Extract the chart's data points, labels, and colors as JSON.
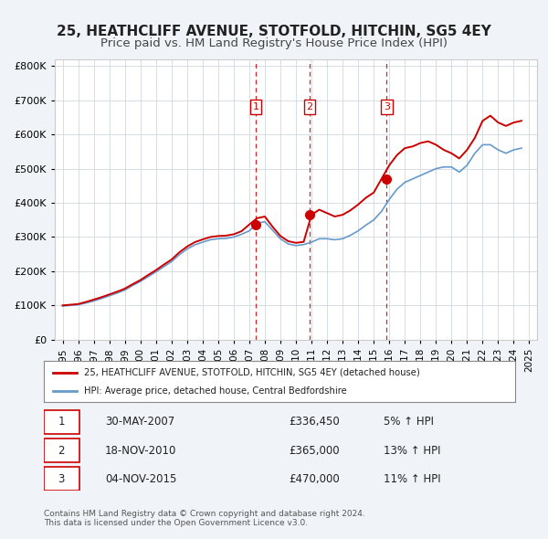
{
  "title": "25, HEATHCLIFF AVENUE, STOTFOLD, HITCHIN, SG5 4EY",
  "subtitle": "Price paid vs. HM Land Registry's House Price Index (HPI)",
  "title_fontsize": 11,
  "subtitle_fontsize": 9.5,
  "background_color": "#f0f4f8",
  "plot_bg_color": "#ffffff",
  "red_line_color": "#cc0000",
  "blue_line_color": "#6699cc",
  "sale_marker_color": "#cc0000",
  "dashed_line_color": "#cc0000",
  "xlabel": "",
  "ylabel": "",
  "ylim": [
    0,
    820000
  ],
  "xlim_start": 1994.5,
  "xlim_end": 2025.5,
  "yticks": [
    0,
    100000,
    200000,
    300000,
    400000,
    500000,
    600000,
    700000,
    800000
  ],
  "ytick_labels": [
    "£0",
    "£100K",
    "£200K",
    "£300K",
    "£400K",
    "£500K",
    "£600K",
    "£700K",
    "£800K"
  ],
  "xticks": [
    1995,
    1996,
    1997,
    1998,
    1999,
    2000,
    2001,
    2002,
    2003,
    2004,
    2005,
    2006,
    2007,
    2008,
    2009,
    2010,
    2011,
    2012,
    2013,
    2014,
    2015,
    2016,
    2017,
    2018,
    2019,
    2020,
    2021,
    2022,
    2023,
    2024,
    2025
  ],
  "sale_dates": [
    2007.41,
    2010.88,
    2015.84
  ],
  "sale_prices": [
    336450,
    365000,
    470000
  ],
  "sale_labels": [
    "1",
    "2",
    "3"
  ],
  "legend_red_label": "25, HEATHCLIFF AVENUE, STOTFOLD, HITCHIN, SG5 4EY (detached house)",
  "legend_blue_label": "HPI: Average price, detached house, Central Bedfordshire",
  "table_rows": [
    {
      "num": "1",
      "date": "30-MAY-2007",
      "price": "£336,450",
      "change": "5% ↑ HPI"
    },
    {
      "num": "2",
      "date": "18-NOV-2010",
      "price": "£365,000",
      "change": "13% ↑ HPI"
    },
    {
      "num": "3",
      "date": "04-NOV-2015",
      "price": "£470,000",
      "change": "11% ↑ HPI"
    }
  ],
  "footer": "Contains HM Land Registry data © Crown copyright and database right 2024.\nThis data is licensed under the Open Government Licence v3.0.",
  "hpi_x": [
    1995,
    1995.5,
    1996,
    1996.5,
    1997,
    1997.5,
    1998,
    1998.5,
    1999,
    1999.5,
    2000,
    2000.5,
    2001,
    2001.5,
    2002,
    2002.5,
    2003,
    2003.5,
    2004,
    2004.5,
    2005,
    2005.5,
    2006,
    2006.5,
    2007,
    2007.5,
    2008,
    2008.5,
    2009,
    2009.5,
    2010,
    2010.5,
    2011,
    2011.5,
    2012,
    2012.5,
    2013,
    2013.5,
    2014,
    2014.5,
    2015,
    2015.5,
    2016,
    2016.5,
    2017,
    2017.5,
    2018,
    2018.5,
    2019,
    2019.5,
    2020,
    2020.5,
    2021,
    2021.5,
    2022,
    2022.5,
    2023,
    2023.5,
    2024,
    2024.5
  ],
  "hpi_y": [
    98000,
    100000,
    102000,
    107000,
    113000,
    120000,
    128000,
    136000,
    145000,
    158000,
    170000,
    184000,
    198000,
    213000,
    228000,
    248000,
    265000,
    277000,
    285000,
    292000,
    295000,
    296000,
    300000,
    308000,
    318000,
    340000,
    345000,
    320000,
    295000,
    280000,
    275000,
    278000,
    285000,
    295000,
    295000,
    292000,
    295000,
    305000,
    318000,
    335000,
    350000,
    375000,
    410000,
    440000,
    460000,
    470000,
    480000,
    490000,
    500000,
    505000,
    505000,
    490000,
    510000,
    545000,
    570000,
    570000,
    555000,
    545000,
    555000,
    560000
  ],
  "red_x": [
    1995,
    1995.5,
    1996,
    1996.5,
    1997,
    1997.5,
    1998,
    1998.5,
    1999,
    1999.5,
    2000,
    2000.5,
    2001,
    2001.5,
    2002,
    2002.5,
    2003,
    2003.5,
    2004,
    2004.5,
    2005,
    2005.5,
    2006,
    2006.5,
    2007,
    2007.5,
    2008,
    2008.5,
    2009,
    2009.5,
    2010,
    2010.5,
    2011,
    2011.5,
    2012,
    2012.5,
    2013,
    2013.5,
    2014,
    2014.5,
    2015,
    2015.5,
    2016,
    2016.5,
    2017,
    2017.5,
    2018,
    2018.5,
    2019,
    2019.5,
    2020,
    2020.5,
    2021,
    2021.5,
    2022,
    2022.5,
    2023,
    2023.5,
    2024,
    2024.5
  ],
  "red_y": [
    100000,
    102000,
    104000,
    110000,
    117000,
    124000,
    132000,
    140000,
    149000,
    162000,
    174000,
    189000,
    203000,
    219000,
    234000,
    255000,
    272000,
    285000,
    293000,
    300000,
    303000,
    304000,
    308000,
    317000,
    336450,
    355000,
    360000,
    330000,
    303000,
    288000,
    283000,
    286000,
    365000,
    380000,
    370000,
    360000,
    365000,
    378000,
    395000,
    415000,
    430000,
    470000,
    510000,
    540000,
    560000,
    565000,
    575000,
    580000,
    570000,
    555000,
    545000,
    530000,
    555000,
    590000,
    640000,
    655000,
    635000,
    625000,
    635000,
    640000
  ]
}
